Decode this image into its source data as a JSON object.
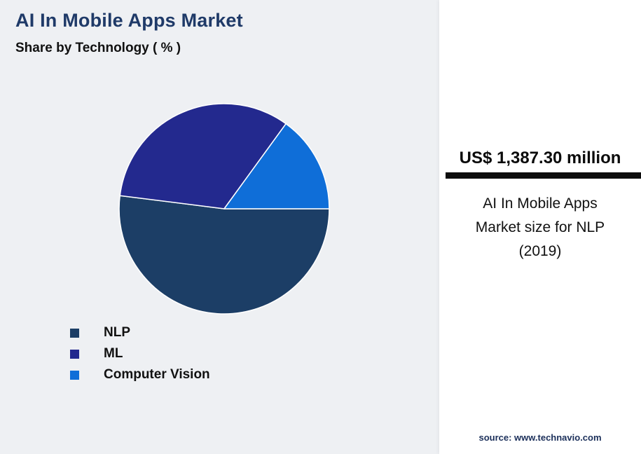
{
  "page": {
    "title": "AI In Mobile Apps Market",
    "subtitle": "Share by Technology ( % )"
  },
  "chart_data": {
    "type": "pie",
    "title": "AI In Mobile Apps Market - Share by Technology (%)",
    "categories": [
      "NLP",
      "ML",
      "Computer Vision"
    ],
    "values": [
      52,
      33,
      15
    ],
    "colors": [
      "#1c3e66",
      "#23298e",
      "#0f6ed8"
    ],
    "start_angle_deg": 0,
    "direction": "clockwise",
    "legend_position": "bottom-left"
  },
  "panel": {
    "headline_value": "US$ 1,387.30 million",
    "caption": "AI In Mobile Apps Market size for NLP (2019)",
    "source": "source: www.technavio.com"
  }
}
